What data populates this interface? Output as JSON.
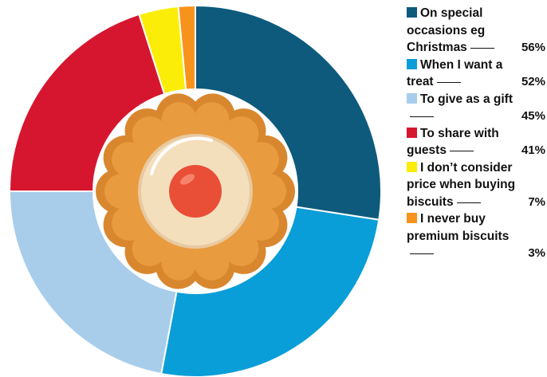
{
  "chart_data": {
    "type": "donut",
    "categories": [
      "On special occasions eg Christmas",
      "When I want a treat",
      "To give as a gift",
      "To share with guests",
      "I don’t consider price when buying biscuits",
      "I never buy premium biscuits"
    ],
    "values": [
      56,
      52,
      45,
      41,
      7,
      3
    ],
    "value_labels": [
      "56%",
      "52%",
      "45%",
      "41%",
      "7%",
      "3%"
    ],
    "colors": [
      "#0d5a7c",
      "#0a9ed8",
      "#a8cdeb",
      "#d6162f",
      "#fbed07",
      "#f7931d"
    ]
  }
}
